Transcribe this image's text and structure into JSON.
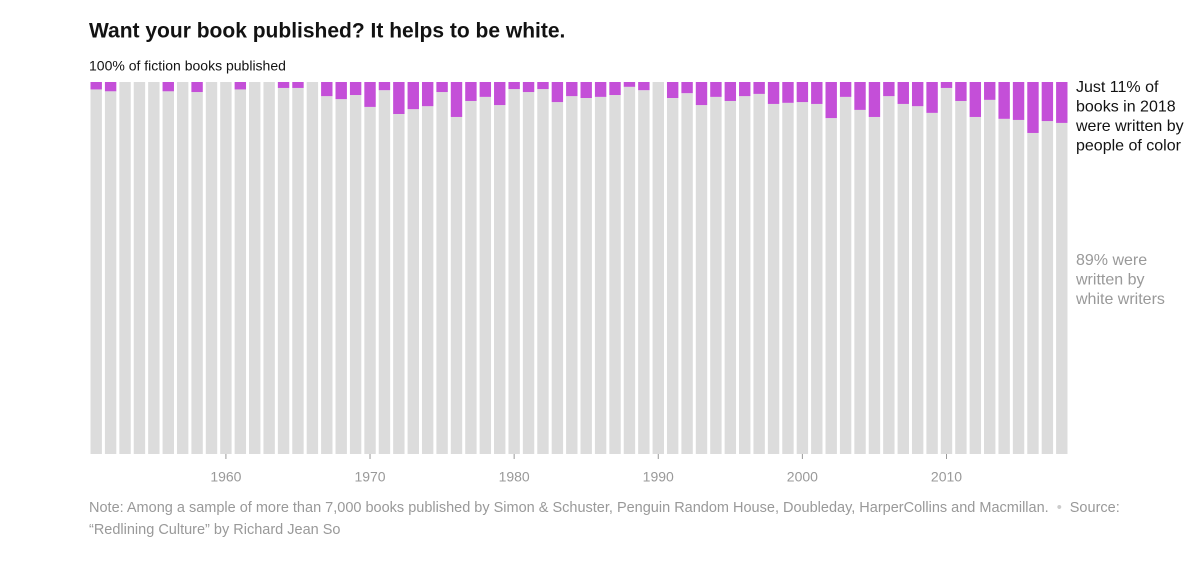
{
  "chart_data": {
    "type": "stacked_bar",
    "title": "Want your book published? It helps to be white.",
    "y_label": "100% of fiction books published",
    "x": [
      1951,
      1952,
      1953,
      1954,
      1955,
      1956,
      1957,
      1958,
      1959,
      1960,
      1961,
      1962,
      1963,
      1964,
      1965,
      1966,
      1967,
      1968,
      1969,
      1970,
      1971,
      1972,
      1973,
      1974,
      1975,
      1976,
      1977,
      1978,
      1979,
      1980,
      1981,
      1982,
      1983,
      1984,
      1985,
      1986,
      1987,
      1988,
      1989,
      1990,
      1991,
      1992,
      1993,
      1994,
      1995,
      1996,
      1997,
      1998,
      1999,
      2000,
      2001,
      2002,
      2003,
      2004,
      2005,
      2006,
      2007,
      2008,
      2009,
      2010,
      2011,
      2012,
      2013,
      2014,
      2015,
      2016,
      2017,
      2018
    ],
    "series": [
      {
        "color": "#dcdcdc",
        "values": [
          98,
          97.5,
          100,
          100,
          100,
          97.5,
          100,
          97.3,
          100,
          100,
          98,
          100,
          100,
          98.4,
          98.4,
          100,
          96.2,
          95.4,
          96.5,
          93.3,
          97.8,
          91.4,
          92.7,
          93.5,
          97.3,
          90.6,
          94.9,
          96,
          93.8,
          98.1,
          97.3,
          98.1,
          94.6,
          96.2,
          95.7,
          96,
          96.5,
          98.7,
          97.8,
          100,
          95.7,
          97,
          93.8,
          96,
          94.9,
          96.2,
          96.8,
          94.1,
          94.4,
          94.6,
          94.1,
          90.3,
          96,
          92.5,
          90.6,
          96.2,
          94.1,
          93.5,
          91.7,
          98.4,
          94.9,
          90.6,
          95.2,
          90.1,
          89.8,
          86.3,
          89.5,
          89
        ]
      },
      {
        "color": "#c44fd8",
        "values": [
          2,
          2.5,
          0,
          0,
          0,
          2.5,
          0,
          2.7,
          0,
          0,
          2,
          0,
          0,
          1.6,
          1.6,
          0,
          3.8,
          4.6,
          3.5,
          6.7,
          2.2,
          8.6,
          7.3,
          6.5,
          2.7,
          9.4,
          5.1,
          4,
          6.2,
          1.9,
          2.7,
          1.9,
          5.4,
          3.8,
          4.3,
          4,
          3.5,
          1.3,
          2.2,
          0,
          4.3,
          3,
          6.2,
          4,
          5.1,
          3.8,
          3.2,
          5.9,
          5.6,
          5.4,
          5.9,
          9.7,
          4,
          7.5,
          9.4,
          3.8,
          5.9,
          6.5,
          8.3,
          1.6,
          5.1,
          9.4,
          4.8,
          9.9,
          10.2,
          13.7,
          10.5,
          11
        ]
      }
    ],
    "xlim": [
      1950.5,
      2018.5
    ],
    "xticks": [
      1960,
      1970,
      1980,
      1990,
      2000,
      2010
    ],
    "ylim": [
      0,
      100
    ],
    "annotations": [
      {
        "color": "#121212",
        "lines": [
          "Just 11% of",
          "books in 2018",
          "were written by",
          "people of color"
        ]
      },
      {
        "color": "#999999",
        "lines": [
          "89% were",
          "written by",
          "white writers"
        ]
      }
    ],
    "note": "Note: Among a sample of more than 7,000 books published by Simon & Schuster, Penguin Random House, Doubleday, HarperCollins and Macmillan.",
    "source": "Source: “Redlining Culture” by Richard Jean So"
  }
}
